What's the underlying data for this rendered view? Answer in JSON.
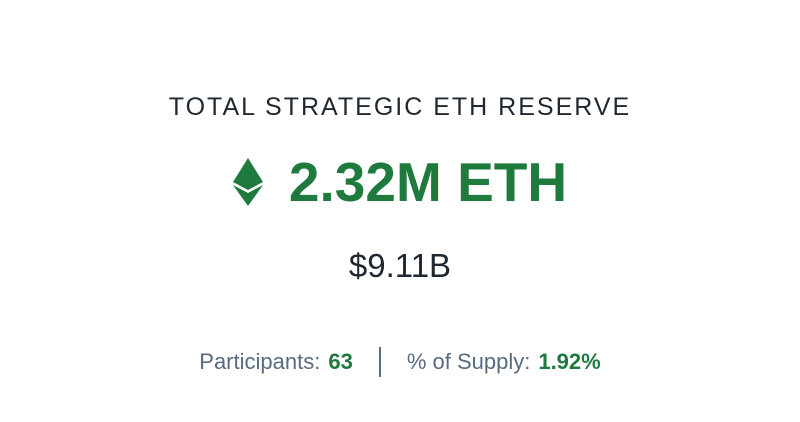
{
  "reserve": {
    "heading": "TOTAL STRATEGIC ETH RESERVE",
    "icon": "ethereum-icon",
    "amount": "2.32M ETH",
    "usd_value": "$9.11B"
  },
  "stats": {
    "participants_label": "Participants:",
    "participants_value": "63",
    "supply_label": "% of Supply:",
    "supply_value": "1.92%"
  },
  "colors": {
    "accent_green": "#1f7a3e",
    "text_dark": "#1f2731",
    "text_muted": "#5a6a80"
  }
}
